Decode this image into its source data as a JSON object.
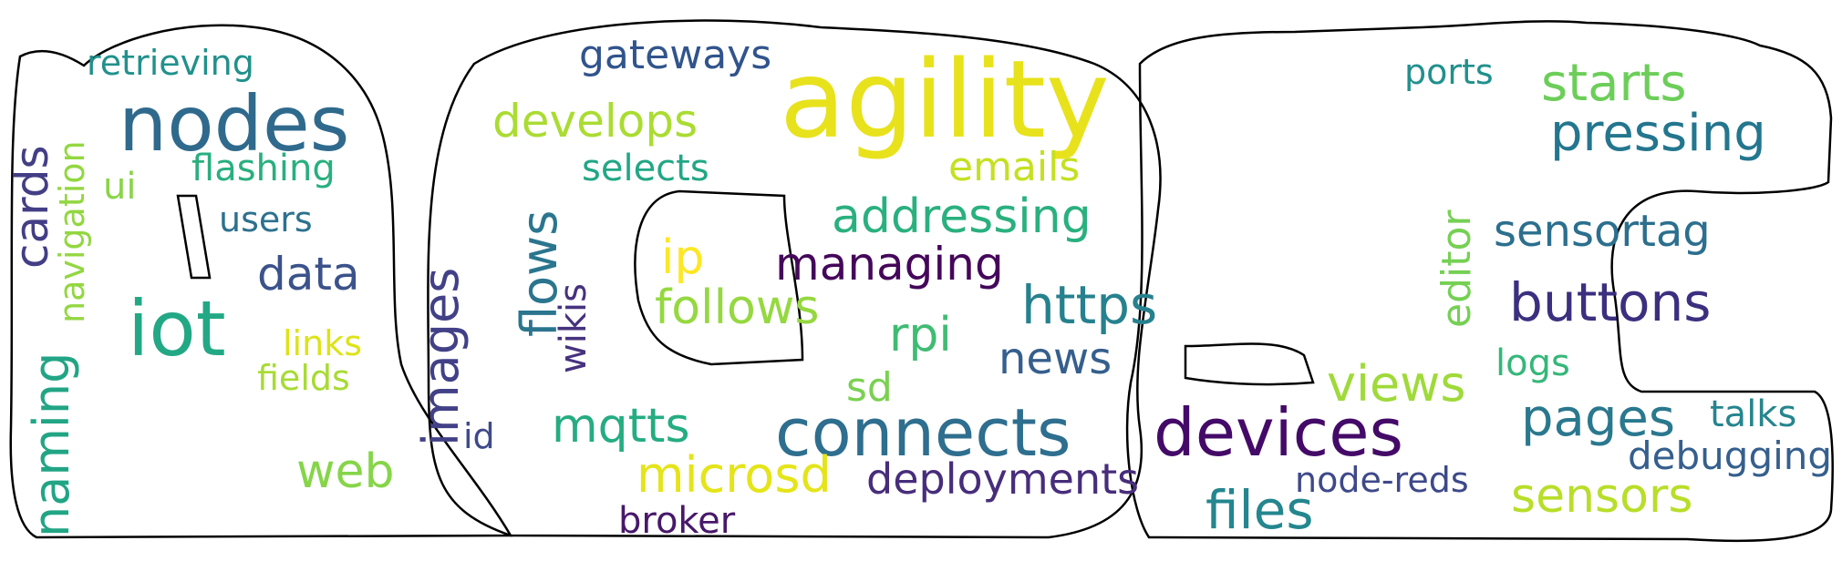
{
  "outline_color": "#000000",
  "words": [
    {
      "text": "agility",
      "color": "#e8e21c"
    },
    {
      "text": "nodes",
      "color": "#2f6a8d"
    },
    {
      "text": "iot",
      "color": "#22a884"
    },
    {
      "text": "connects",
      "color": "#2e6e8e"
    },
    {
      "text": "devices",
      "color": "#440a68"
    },
    {
      "text": "buttons",
      "color": "#3b2f7f"
    },
    {
      "text": "https",
      "color": "#26818e"
    },
    {
      "text": "pressing",
      "color": "#23768e"
    },
    {
      "text": "starts",
      "color": "#6cce59"
    },
    {
      "text": "sensortag",
      "color": "#2c6f8e"
    },
    {
      "text": "addressing",
      "color": "#2ab07f"
    },
    {
      "text": "managing",
      "color": "#45075a"
    },
    {
      "text": "develops",
      "color": "#aadc32"
    },
    {
      "text": "gateways",
      "color": "#31548c"
    },
    {
      "text": "retrieving",
      "color": "#21918c"
    },
    {
      "text": "navigation",
      "color": "#93d741"
    },
    {
      "text": "cards",
      "color": "#433e85"
    },
    {
      "text": "naming",
      "color": "#21a585"
    },
    {
      "text": "flashing",
      "color": "#29af7f"
    },
    {
      "text": "ui",
      "color": "#89d548"
    },
    {
      "text": "users",
      "color": "#2d718e"
    },
    {
      "text": "data",
      "color": "#3b528b"
    },
    {
      "text": "links",
      "color": "#dde318"
    },
    {
      "text": "fields",
      "color": "#a8db34"
    },
    {
      "text": "web",
      "color": "#86d549"
    },
    {
      "text": "images",
      "color": "#424086"
    },
    {
      "text": "id",
      "color": "#3e4a89"
    },
    {
      "text": "flows",
      "color": "#2b758e"
    },
    {
      "text": "wikis",
      "color": "#46327e"
    },
    {
      "text": "selects",
      "color": "#22a785"
    },
    {
      "text": "emails",
      "color": "#c5e021"
    },
    {
      "text": "ip",
      "color": "#fde725"
    },
    {
      "text": "follows",
      "color": "#95d840"
    },
    {
      "text": "rpi",
      "color": "#3fbc73"
    },
    {
      "text": "sd",
      "color": "#7ad151"
    },
    {
      "text": "news",
      "color": "#355f8d"
    },
    {
      "text": "mqtts",
      "color": "#25ac82"
    },
    {
      "text": "microsd",
      "color": "#e5e419"
    },
    {
      "text": "broker",
      "color": "#48186a"
    },
    {
      "text": "deployments",
      "color": "#472d7b"
    },
    {
      "text": "files",
      "color": "#24868e"
    },
    {
      "text": "node-reds",
      "color": "#3e4989"
    },
    {
      "text": "views",
      "color": "#9fda3a"
    },
    {
      "text": "editor",
      "color": "#75d054"
    },
    {
      "text": "logs",
      "color": "#35b779"
    },
    {
      "text": "pages",
      "color": "#2a788e"
    },
    {
      "text": "talks",
      "color": "#25858e"
    },
    {
      "text": "debugging",
      "color": "#355f8d"
    },
    {
      "text": "sensors",
      "color": "#b8de29"
    },
    {
      "text": "ports",
      "color": "#21908d"
    }
  ]
}
